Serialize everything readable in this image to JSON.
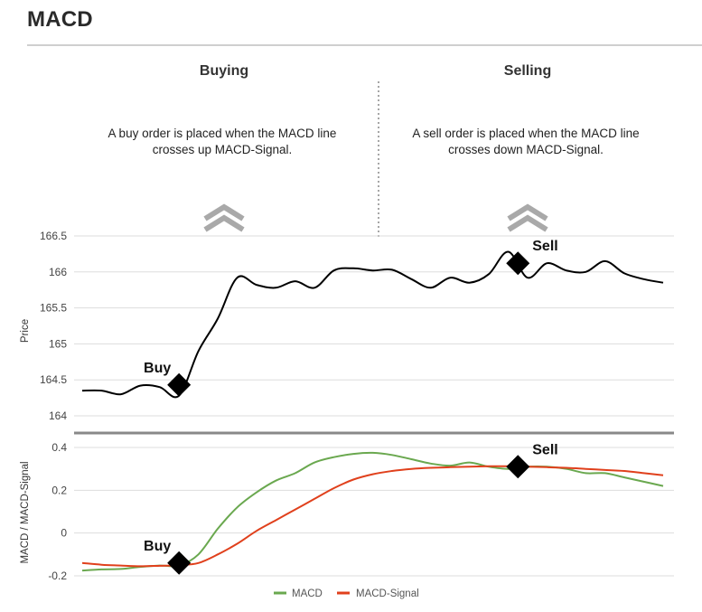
{
  "header": {
    "title": "MACD"
  },
  "columns": [
    {
      "heading": "Buying",
      "text_line1": "A buy order is placed when the MACD line",
      "text_line2": "crosses up MACD-Signal."
    },
    {
      "heading": "Selling",
      "text_line1": "A sell order is placed when the MACD line",
      "text_line2": "crosses down MACD-Signal."
    }
  ],
  "icons": {
    "buy_chevron": "double-chevron-up-icon",
    "sell_chevron": "double-chevron-up-icon",
    "marker": "diamond-marker-icon"
  },
  "colors": {
    "price": "#000000",
    "macd": "#6aa84f",
    "signal": "#e0401c",
    "grid": "#dddddd",
    "divider": "#888888"
  },
  "chart_data": [
    {
      "type": "line",
      "ylabel": "Price",
      "ylim": [
        164,
        166.5
      ],
      "yticks": [
        164,
        164.5,
        165,
        165.5,
        166,
        166.5
      ],
      "ytick_labels": [
        "164",
        "164.5",
        "165",
        "165.5",
        "166",
        "166.5"
      ],
      "grid": true,
      "x": [
        0,
        2,
        4,
        6,
        8,
        10,
        12,
        14,
        16,
        18,
        20,
        22,
        24,
        26,
        28,
        30,
        32,
        34,
        36,
        38,
        40,
        42,
        44,
        46,
        48,
        50,
        52,
        54,
        56,
        58,
        60
      ],
      "series": [
        {
          "values": [
            164.35,
            164.35,
            164.3,
            164.42,
            164.4,
            164.28,
            164.9,
            165.35,
            165.92,
            165.82,
            165.78,
            165.87,
            165.78,
            166.02,
            166.05,
            166.02,
            166.03,
            165.9,
            165.78,
            165.92,
            165.85,
            165.97,
            166.28,
            165.92,
            166.12,
            166.02,
            166.0,
            166.15,
            165.98,
            165.9,
            165.85
          ]
        }
      ],
      "annotations": [
        {
          "label": "Buy",
          "x": 10,
          "y": 164.43
        },
        {
          "label": "Sell",
          "x": 45,
          "y": 166.12
        }
      ]
    },
    {
      "type": "line",
      "ylabel": "MACD / MACD-Signal",
      "ylim": [
        -0.2,
        0.4
      ],
      "yticks": [
        -0.2,
        0,
        0.2,
        0.4
      ],
      "ytick_labels": [
        "-0.2",
        "0",
        "0.2",
        "0.4"
      ],
      "grid": true,
      "legend": "bottom",
      "x": [
        0,
        2,
        4,
        6,
        8,
        10,
        12,
        14,
        16,
        18,
        20,
        22,
        24,
        26,
        28,
        30,
        32,
        34,
        36,
        38,
        40,
        42,
        44,
        46,
        48,
        50,
        52,
        54,
        56,
        58,
        60
      ],
      "series": [
        {
          "name": "MACD",
          "values": [
            -0.175,
            -0.17,
            -0.168,
            -0.158,
            -0.152,
            -0.152,
            -0.1,
            0.02,
            0.12,
            0.19,
            0.245,
            0.28,
            0.33,
            0.355,
            0.37,
            0.375,
            0.365,
            0.345,
            0.325,
            0.315,
            0.33,
            0.31,
            0.3,
            0.31,
            0.31,
            0.3,
            0.28,
            0.28,
            0.26,
            0.24,
            0.22
          ]
        },
        {
          "name": "MACD-Signal",
          "values": [
            -0.14,
            -0.148,
            -0.152,
            -0.155,
            -0.153,
            -0.15,
            -0.14,
            -0.1,
            -0.05,
            0.01,
            0.06,
            0.11,
            0.16,
            0.21,
            0.25,
            0.275,
            0.29,
            0.3,
            0.305,
            0.308,
            0.31,
            0.312,
            0.312,
            0.31,
            0.308,
            0.305,
            0.3,
            0.295,
            0.29,
            0.28,
            0.27
          ]
        }
      ],
      "annotations": [
        {
          "label": "Buy",
          "x": 10,
          "y": -0.14
        },
        {
          "label": "Sell",
          "x": 45,
          "y": 0.31
        }
      ]
    }
  ]
}
